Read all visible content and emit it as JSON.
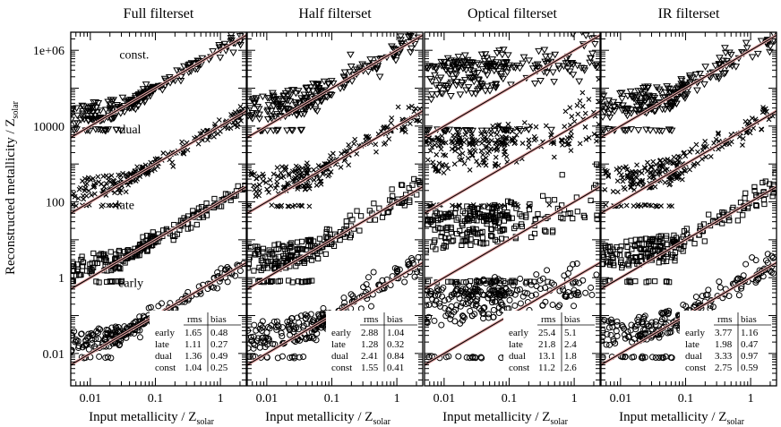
{
  "chart_data": {
    "type": "scatter",
    "ylabel": {
      "main": "Reconstructed metallicity / Z",
      "sub": "solar"
    },
    "xlabel": {
      "main": "Input metallicity / Z",
      "sub": "solar"
    },
    "x_scale": "log",
    "y_scale": "log",
    "xlim": [
      0.005,
      2.5
    ],
    "ylim": [
      0.0014,
      3000000
    ],
    "x_ticks": [
      {
        "value": 0.01,
        "label": "0.01"
      },
      {
        "value": 0.1,
        "label": "0.1"
      },
      {
        "value": 1,
        "label": "1"
      }
    ],
    "y_ticks": [
      {
        "value": 0.01,
        "label": "0.01"
      },
      {
        "value": 1,
        "label": "1"
      },
      {
        "value": 100,
        "label": "100"
      },
      {
        "value": 10000,
        "label": "10000"
      },
      {
        "value": 1000000,
        "label": "1e+06"
      }
    ],
    "series_offsets": {
      "early": 1,
      "late": 100,
      "dual": 10000,
      "const": 1000000
    },
    "series_markers": {
      "early": "open-circle",
      "late": "open-square",
      "dual": "cross",
      "const": "open-down-triangle"
    },
    "series_annotations": [
      {
        "series": "const",
        "label": "const.",
        "x": 0.028,
        "y": 800000
      },
      {
        "series": "dual",
        "label": "dual",
        "x": 0.028,
        "y": 8500
      },
      {
        "series": "late",
        "label": "late",
        "x": 0.025,
        "y": 85
      },
      {
        "series": "early",
        "label": "early",
        "x": 0.027,
        "y": 0.75
      }
    ],
    "colors": {
      "one_to_one_line": "#e8a8a8",
      "regression_line": "#000000",
      "markers": "#000000"
    },
    "stats_headers": [
      "rms",
      "bias"
    ],
    "panels": [
      {
        "title": "Full filterset",
        "stats": [
          {
            "model": "early",
            "rms": "1.65",
            "bias": "0.48"
          },
          {
            "model": "late",
            "rms": "1.11",
            "bias": "0.27"
          },
          {
            "model": "dual",
            "rms": "1.36",
            "bias": "0.49"
          },
          {
            "model": "const",
            "rms": "1.04",
            "bias": "0.25"
          }
        ]
      },
      {
        "title": "Half filterset",
        "stats": [
          {
            "model": "early",
            "rms": "2.88",
            "bias": "1.04"
          },
          {
            "model": "late",
            "rms": "1.28",
            "bias": "0.32"
          },
          {
            "model": "dual",
            "rms": "2.41",
            "bias": "0.84"
          },
          {
            "model": "const",
            "rms": "1.55",
            "bias": "0.41"
          }
        ]
      },
      {
        "title": "Optical filterset",
        "stats": [
          {
            "model": "early",
            "rms": "25.4",
            "bias": "5.1"
          },
          {
            "model": "late",
            "rms": "21.8",
            "bias": "2.4"
          },
          {
            "model": "dual",
            "rms": "13.1",
            "bias": "1.8"
          },
          {
            "model": "const",
            "rms": "11.2",
            "bias": "2.6"
          }
        ]
      },
      {
        "title": "IR filterset",
        "stats": [
          {
            "model": "early",
            "rms": "3.77",
            "bias": "1.16"
          },
          {
            "model": "late",
            "rms": "1.98",
            "bias": "0.47"
          },
          {
            "model": "dual",
            "rms": "3.33",
            "bias": "0.97"
          },
          {
            "model": "const",
            "rms": "2.75",
            "bias": "0.59"
          }
        ]
      }
    ]
  }
}
